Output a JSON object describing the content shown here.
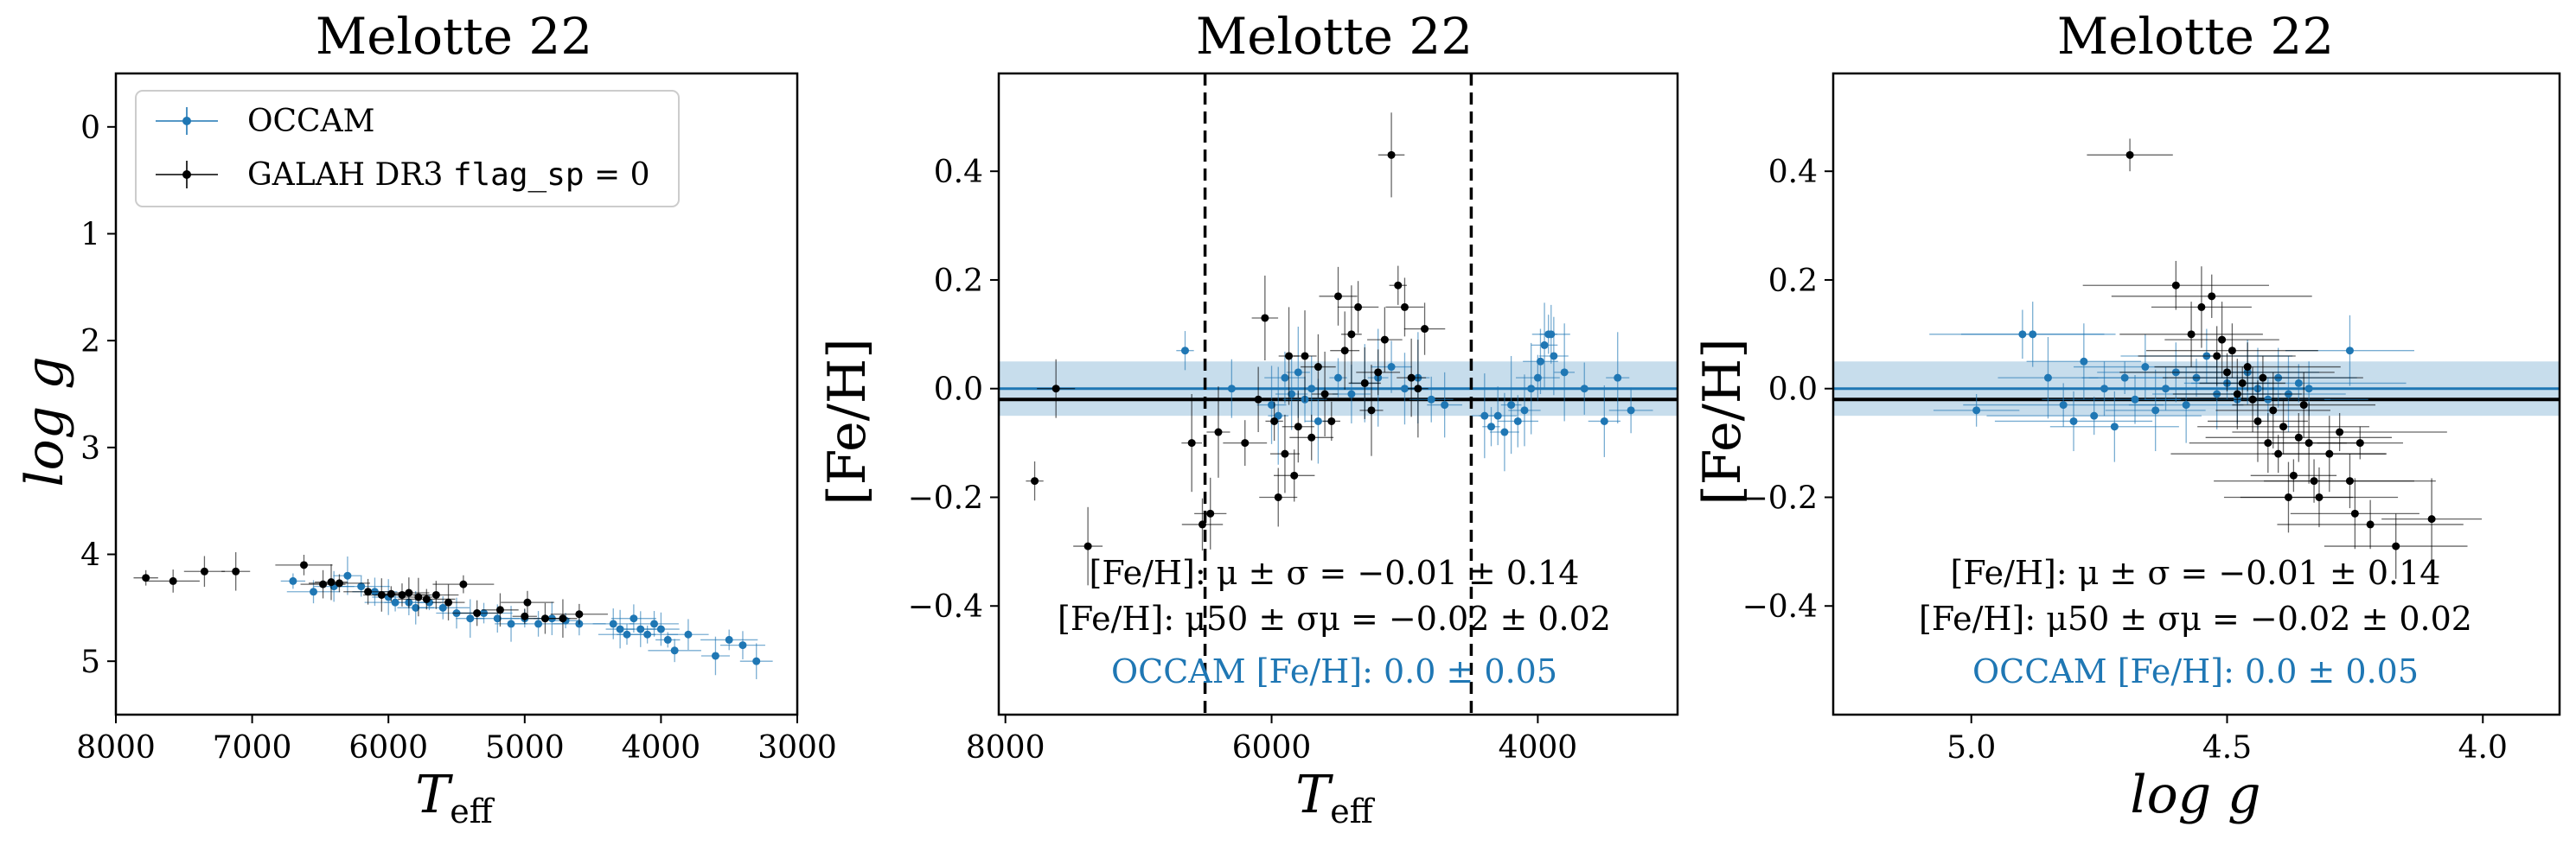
{
  "chart_data": [
    {
      "type": "scatter",
      "title": "Melotte 22",
      "xlabel": "T",
      "xlabel_sub": "eff",
      "ylabel": "log g",
      "xlim": [
        8000,
        3000
      ],
      "ylim": [
        5.5,
        -0.5
      ],
      "xticks": [
        "8000",
        "7000",
        "6000",
        "5000",
        "4000",
        "3000"
      ],
      "yticks": [
        "0",
        "1",
        "2",
        "3",
        "4",
        "5"
      ],
      "legend": {
        "position": "top-left",
        "entries": [
          {
            "label": "OCCAM",
            "color": "#1f77b4"
          },
          {
            "label_prefix": "GALAH DR3 ",
            "label_code": "flag_sp",
            "label_suffix": " = 0",
            "color": "#000000"
          }
        ]
      },
      "series": [
        {
          "name": "OCCAM",
          "color": "#1f77b4",
          "points": [
            {
              "x": 6700,
              "y": 4.25
            },
            {
              "x": 6550,
              "y": 4.35
            },
            {
              "x": 6400,
              "y": 4.3
            },
            {
              "x": 6300,
              "y": 4.2
            },
            {
              "x": 6200,
              "y": 4.3
            },
            {
              "x": 6100,
              "y": 4.35
            },
            {
              "x": 6000,
              "y": 4.4
            },
            {
              "x": 5950,
              "y": 4.45
            },
            {
              "x": 5850,
              "y": 4.45
            },
            {
              "x": 5800,
              "y": 4.5
            },
            {
              "x": 5700,
              "y": 4.45
            },
            {
              "x": 5600,
              "y": 4.5
            },
            {
              "x": 5500,
              "y": 4.55
            },
            {
              "x": 5400,
              "y": 4.6
            },
            {
              "x": 5300,
              "y": 4.55
            },
            {
              "x": 5200,
              "y": 4.6
            },
            {
              "x": 5100,
              "y": 4.65
            },
            {
              "x": 5000,
              "y": 4.6
            },
            {
              "x": 4900,
              "y": 4.65
            },
            {
              "x": 4800,
              "y": 4.6
            },
            {
              "x": 4700,
              "y": 4.62
            },
            {
              "x": 4600,
              "y": 4.65
            },
            {
              "x": 4350,
              "y": 4.65
            },
            {
              "x": 4300,
              "y": 4.7
            },
            {
              "x": 4250,
              "y": 4.75
            },
            {
              "x": 4200,
              "y": 4.6
            },
            {
              "x": 4150,
              "y": 4.7
            },
            {
              "x": 4100,
              "y": 4.75
            },
            {
              "x": 4050,
              "y": 4.65
            },
            {
              "x": 4000,
              "y": 4.7
            },
            {
              "x": 3950,
              "y": 4.8
            },
            {
              "x": 3900,
              "y": 4.9
            },
            {
              "x": 3800,
              "y": 4.75
            },
            {
              "x": 3600,
              "y": 4.95
            },
            {
              "x": 3500,
              "y": 4.8
            },
            {
              "x": 3400,
              "y": 4.85
            },
            {
              "x": 3300,
              "y": 5.0
            }
          ]
        },
        {
          "name": "GALAH DR3 flag_sp = 0",
          "color": "#000000",
          "points": [
            {
              "x": 7780,
              "y": 4.22
            },
            {
              "x": 7580,
              "y": 4.25
            },
            {
              "x": 7350,
              "y": 4.16
            },
            {
              "x": 7120,
              "y": 4.16
            },
            {
              "x": 6620,
              "y": 4.1
            },
            {
              "x": 6480,
              "y": 4.28
            },
            {
              "x": 6420,
              "y": 4.26
            },
            {
              "x": 6360,
              "y": 4.27
            },
            {
              "x": 6150,
              "y": 4.35
            },
            {
              "x": 6050,
              "y": 4.38
            },
            {
              "x": 5980,
              "y": 4.37
            },
            {
              "x": 5900,
              "y": 4.38
            },
            {
              "x": 5850,
              "y": 4.36
            },
            {
              "x": 5780,
              "y": 4.4
            },
            {
              "x": 5720,
              "y": 4.42
            },
            {
              "x": 5650,
              "y": 4.38
            },
            {
              "x": 5560,
              "y": 4.45
            },
            {
              "x": 5450,
              "y": 4.28
            },
            {
              "x": 5350,
              "y": 4.55
            },
            {
              "x": 5180,
              "y": 4.52
            },
            {
              "x": 5000,
              "y": 4.58
            },
            {
              "x": 4980,
              "y": 4.45
            },
            {
              "x": 4850,
              "y": 4.6
            },
            {
              "x": 4720,
              "y": 4.6
            },
            {
              "x": 4600,
              "y": 4.56
            }
          ]
        }
      ]
    },
    {
      "type": "scatter",
      "title": "Melotte 22",
      "xlabel": "T",
      "xlabel_sub": "eff",
      "ylabel": "[Fe/H]",
      "xlim": [
        8050,
        2950
      ],
      "ylim": [
        -0.6,
        0.58
      ],
      "xticks": [
        "8000",
        "6000",
        "4000"
      ],
      "yticks": [
        "−0.4",
        "−0.2",
        "0.0",
        "0.2",
        "0.4"
      ],
      "vlines": [
        6500,
        4500
      ],
      "hline_black": -0.02,
      "hline_blue": 0.0,
      "band_blue": [
        -0.05,
        0.05
      ],
      "annotations": {
        "line1": "[Fe/H]: μ ± σ = −0.01 ± 0.14",
        "line2": "[Fe/H]: μ50 ± σμ = −0.02 ± 0.02",
        "line3": "OCCAM [Fe/H]: 0.0 ± 0.05"
      },
      "series": [
        {
          "name": "OCCAM",
          "color": "#1f77b4",
          "points": [
            {
              "x": 6650,
              "y": 0.07
            },
            {
              "x": 6300,
              "y": 0.0
            },
            {
              "x": 6000,
              "y": -0.03
            },
            {
              "x": 5950,
              "y": -0.05
            },
            {
              "x": 5900,
              "y": 0.02
            },
            {
              "x": 5850,
              "y": -0.01
            },
            {
              "x": 5800,
              "y": 0.03
            },
            {
              "x": 5750,
              "y": -0.02
            },
            {
              "x": 5700,
              "y": 0.0
            },
            {
              "x": 5650,
              "y": -0.06
            },
            {
              "x": 5500,
              "y": 0.02
            },
            {
              "x": 5400,
              "y": -0.01
            },
            {
              "x": 5300,
              "y": 0.01
            },
            {
              "x": 5200,
              "y": 0.02
            },
            {
              "x": 5100,
              "y": 0.04
            },
            {
              "x": 5000,
              "y": 0.0
            },
            {
              "x": 4900,
              "y": 0.02
            },
            {
              "x": 4800,
              "y": -0.02
            },
            {
              "x": 4700,
              "y": -0.03
            },
            {
              "x": 4400,
              "y": -0.05
            },
            {
              "x": 4350,
              "y": -0.07
            },
            {
              "x": 4300,
              "y": -0.05
            },
            {
              "x": 4250,
              "y": -0.08
            },
            {
              "x": 4200,
              "y": -0.03
            },
            {
              "x": 4150,
              "y": -0.06
            },
            {
              "x": 4100,
              "y": -0.04
            },
            {
              "x": 4050,
              "y": 0.0
            },
            {
              "x": 4000,
              "y": 0.02
            },
            {
              "x": 3980,
              "y": 0.05
            },
            {
              "x": 3950,
              "y": 0.08
            },
            {
              "x": 3920,
              "y": 0.1
            },
            {
              "x": 3900,
              "y": 0.1
            },
            {
              "x": 3880,
              "y": 0.06
            },
            {
              "x": 3800,
              "y": 0.03
            },
            {
              "x": 3650,
              "y": 0.0
            },
            {
              "x": 3500,
              "y": -0.06
            },
            {
              "x": 3400,
              "y": 0.02
            },
            {
              "x": 3300,
              "y": -0.04
            }
          ]
        },
        {
          "name": "GALAH DR3 flag_sp = 0",
          "color": "#000000",
          "points": [
            {
              "x": 7780,
              "y": -0.17
            },
            {
              "x": 7620,
              "y": 0.0
            },
            {
              "x": 7380,
              "y": -0.29
            },
            {
              "x": 6600,
              "y": -0.1
            },
            {
              "x": 6520,
              "y": -0.25
            },
            {
              "x": 6460,
              "y": -0.23
            },
            {
              "x": 6400,
              "y": -0.08
            },
            {
              "x": 6200,
              "y": -0.1
            },
            {
              "x": 6100,
              "y": -0.02
            },
            {
              "x": 6050,
              "y": 0.13
            },
            {
              "x": 5980,
              "y": -0.06
            },
            {
              "x": 5950,
              "y": -0.2
            },
            {
              "x": 5900,
              "y": -0.12
            },
            {
              "x": 5870,
              "y": 0.06
            },
            {
              "x": 5830,
              "y": -0.16
            },
            {
              "x": 5800,
              "y": -0.07
            },
            {
              "x": 5750,
              "y": 0.06
            },
            {
              "x": 5700,
              "y": -0.09
            },
            {
              "x": 5650,
              "y": 0.04
            },
            {
              "x": 5600,
              "y": -0.01
            },
            {
              "x": 5550,
              "y": -0.06
            },
            {
              "x": 5500,
              "y": 0.17
            },
            {
              "x": 5450,
              "y": 0.07
            },
            {
              "x": 5400,
              "y": 0.1
            },
            {
              "x": 5350,
              "y": 0.15
            },
            {
              "x": 5300,
              "y": 0.01
            },
            {
              "x": 5250,
              "y": -0.04
            },
            {
              "x": 5200,
              "y": 0.03
            },
            {
              "x": 5150,
              "y": 0.09
            },
            {
              "x": 5100,
              "y": 0.43
            },
            {
              "x": 5050,
              "y": 0.19
            },
            {
              "x": 5000,
              "y": 0.15
            },
            {
              "x": 4950,
              "y": 0.02
            },
            {
              "x": 4900,
              "y": 0.0
            },
            {
              "x": 4850,
              "y": 0.11
            }
          ]
        }
      ]
    },
    {
      "type": "scatter",
      "title": "Melotte 22",
      "xlabel": "log g",
      "ylabel": "[Fe/H]",
      "xlim": [
        5.27,
        3.85
      ],
      "ylim": [
        -0.6,
        0.58
      ],
      "xticks": [
        "5.0",
        "4.5",
        "4.0"
      ],
      "yticks": [
        "−0.4",
        "−0.2",
        "0.0",
        "0.2",
        "0.4"
      ],
      "hline_black": -0.02,
      "hline_blue": 0.0,
      "band_blue": [
        -0.05,
        0.05
      ],
      "annotations": {
        "line1": "[Fe/H]: μ ± σ = −0.01 ± 0.14",
        "line2": "[Fe/H]: μ50 ± σμ = −0.02 ± 0.02",
        "line3": "OCCAM [Fe/H]: 0.0 ± 0.05"
      },
      "series": [
        {
          "name": "OCCAM",
          "color": "#1f77b4",
          "points": [
            {
              "x": 4.99,
              "y": -0.04
            },
            {
              "x": 4.9,
              "y": 0.1
            },
            {
              "x": 4.88,
              "y": 0.1
            },
            {
              "x": 4.85,
              "y": 0.02
            },
            {
              "x": 4.82,
              "y": -0.03
            },
            {
              "x": 4.8,
              "y": -0.06
            },
            {
              "x": 4.78,
              "y": 0.05
            },
            {
              "x": 4.76,
              "y": -0.05
            },
            {
              "x": 4.74,
              "y": 0.0
            },
            {
              "x": 4.72,
              "y": -0.07
            },
            {
              "x": 4.7,
              "y": 0.02
            },
            {
              "x": 4.68,
              "y": -0.02
            },
            {
              "x": 4.66,
              "y": 0.04
            },
            {
              "x": 4.64,
              "y": -0.04
            },
            {
              "x": 4.62,
              "y": 0.0
            },
            {
              "x": 4.6,
              "y": 0.03
            },
            {
              "x": 4.58,
              "y": -0.03
            },
            {
              "x": 4.56,
              "y": 0.02
            },
            {
              "x": 4.54,
              "y": 0.06
            },
            {
              "x": 4.52,
              "y": -0.01
            },
            {
              "x": 4.5,
              "y": 0.01
            },
            {
              "x": 4.48,
              "y": -0.02
            },
            {
              "x": 4.46,
              "y": 0.03
            },
            {
              "x": 4.44,
              "y": 0.0
            },
            {
              "x": 4.42,
              "y": -0.02
            },
            {
              "x": 4.4,
              "y": 0.02
            },
            {
              "x": 4.38,
              "y": -0.01
            },
            {
              "x": 4.36,
              "y": 0.01
            },
            {
              "x": 4.34,
              "y": 0.0
            },
            {
              "x": 4.26,
              "y": 0.07
            }
          ]
        },
        {
          "name": "GALAH DR3 flag_sp = 0",
          "color": "#000000",
          "points": [
            {
              "x": 4.69,
              "y": 0.43
            },
            {
              "x": 4.6,
              "y": 0.19
            },
            {
              "x": 4.57,
              "y": 0.1
            },
            {
              "x": 4.55,
              "y": 0.15
            },
            {
              "x": 4.53,
              "y": 0.17
            },
            {
              "x": 4.52,
              "y": 0.06
            },
            {
              "x": 4.51,
              "y": 0.09
            },
            {
              "x": 4.5,
              "y": 0.03
            },
            {
              "x": 4.49,
              "y": 0.07
            },
            {
              "x": 4.48,
              "y": -0.01
            },
            {
              "x": 4.47,
              "y": 0.01
            },
            {
              "x": 4.46,
              "y": 0.04
            },
            {
              "x": 4.45,
              "y": -0.02
            },
            {
              "x": 4.44,
              "y": -0.06
            },
            {
              "x": 4.43,
              "y": 0.02
            },
            {
              "x": 4.42,
              "y": -0.1
            },
            {
              "x": 4.41,
              "y": -0.04
            },
            {
              "x": 4.4,
              "y": -0.12
            },
            {
              "x": 4.39,
              "y": -0.07
            },
            {
              "x": 4.38,
              "y": -0.2
            },
            {
              "x": 4.37,
              "y": -0.16
            },
            {
              "x": 4.36,
              "y": -0.09
            },
            {
              "x": 4.35,
              "y": -0.03
            },
            {
              "x": 4.34,
              "y": -0.1
            },
            {
              "x": 4.33,
              "y": -0.17
            },
            {
              "x": 4.32,
              "y": -0.2
            },
            {
              "x": 4.3,
              "y": -0.12
            },
            {
              "x": 4.28,
              "y": -0.08
            },
            {
              "x": 4.26,
              "y": -0.17
            },
            {
              "x": 4.25,
              "y": -0.23
            },
            {
              "x": 4.24,
              "y": -0.1
            },
            {
              "x": 4.22,
              "y": -0.25
            },
            {
              "x": 4.17,
              "y": -0.29
            },
            {
              "x": 4.1,
              "y": -0.24
            }
          ]
        }
      ]
    }
  ]
}
